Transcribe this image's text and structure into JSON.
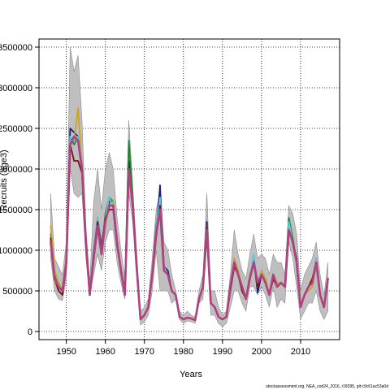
{
  "chart_data": {
    "type": "line",
    "title": "",
    "xlabel": "Years",
    "ylabel": "Recruits (age3)",
    "xlim": [
      1943,
      2020
    ],
    "ylim": [
      -100000,
      3600000
    ],
    "x_ticks": [
      1950,
      1960,
      1970,
      1980,
      1990,
      2000,
      2010
    ],
    "x_tick_labels": [
      "1950",
      "1960",
      "1970",
      "1980",
      "1990",
      "2000",
      "2010"
    ],
    "y_ticks": [
      0,
      500000,
      1000000,
      1500000,
      2000000,
      2500000,
      3000000,
      3500000
    ],
    "y_tick_labels": [
      "0",
      "500000",
      "1000000",
      "1500000",
      "2000000",
      "2500000",
      "3000000",
      "3500000"
    ],
    "grid": true,
    "legend": "none",
    "x": [
      1946,
      1947,
      1948,
      1949,
      1950,
      1951,
      1952,
      1953,
      1954,
      1955,
      1956,
      1957,
      1958,
      1959,
      1960,
      1961,
      1962,
      1963,
      1964,
      1965,
      1966,
      1967,
      1968,
      1969,
      1970,
      1971,
      1972,
      1973,
      1974,
      1975,
      1976,
      1977,
      1978,
      1979,
      1980,
      1981,
      1982,
      1983,
      1984,
      1985,
      1986,
      1987,
      1988,
      1989,
      1990,
      1991,
      1992,
      1993,
      1994,
      1995,
      1996,
      1997,
      1998,
      1999,
      2000,
      2001,
      2002,
      2003,
      2004,
      2005,
      2006,
      2007,
      2008,
      2009,
      2010,
      2011,
      2012,
      2013,
      2014,
      2015,
      2016,
      2017
    ],
    "band": {
      "lower": [
        900000,
        500000,
        400000,
        380000,
        650000,
        2000000,
        1700000,
        1650000,
        1700000,
        900000,
        450000,
        700000,
        950000,
        750000,
        1100000,
        1250000,
        1250000,
        850000,
        600000,
        400000,
        1700000,
        1350000,
        700000,
        80000,
        120000,
        200000,
        500000,
        1000000,
        500000,
        500000,
        500000,
        350000,
        400000,
        150000,
        100000,
        130000,
        120000,
        100000,
        350000,
        400000,
        1100000,
        200000,
        200000,
        100000,
        60000,
        100000,
        300000,
        500000,
        500000,
        350000,
        250000,
        550000,
        550000,
        450000,
        550000,
        450000,
        300000,
        550000,
        300000,
        400000,
        350000,
        1100000,
        900000,
        550000,
        150000,
        250000,
        350000,
        350000,
        500000,
        250000,
        150000,
        250000
      ],
      "upper": [
        1700000,
        900000,
        800000,
        700000,
        1100000,
        3500000,
        3200000,
        3400000,
        2600000,
        1300000,
        600000,
        1600000,
        2000000,
        1500000,
        2000000,
        2200000,
        2000000,
        1400000,
        1000000,
        650000,
        2600000,
        1800000,
        1000000,
        250000,
        300000,
        400000,
        900000,
        1500000,
        1700000,
        1100000,
        1000000,
        700000,
        500000,
        250000,
        200000,
        250000,
        200000,
        180000,
        500000,
        700000,
        1700000,
        500000,
        500000,
        300000,
        200000,
        250000,
        700000,
        1250000,
        950000,
        750000,
        650000,
        950000,
        1200000,
        900000,
        950000,
        900000,
        700000,
        950000,
        850000,
        850000,
        700000,
        1550000,
        1450000,
        1200000,
        500000,
        700000,
        800000,
        900000,
        1100000,
        700000,
        450000,
        850000
      ]
    },
    "series": [
      {
        "color": "#1f1f7a",
        "values": [
          1150000,
          650000,
          550000,
          450000,
          850000,
          2500000,
          2450000,
          2400000,
          2050000,
          1100000,
          500000,
          1000000,
          1400000,
          1050000,
          1400000,
          1600000,
          1600000,
          1100000,
          750000,
          500000,
          2100000,
          1600000,
          800000,
          150000,
          200000,
          300000,
          700000,
          1200000,
          1800000,
          800000,
          750000,
          500000,
          450000,
          180000,
          150000,
          170000,
          160000,
          140000,
          400000,
          550000,
          1350000,
          350000,
          300000,
          180000,
          150000,
          180000,
          500000,
          800000,
          700000,
          500000,
          400000,
          650000,
          900000,
          480000,
          700000,
          600000,
          450000,
          650000,
          550000,
          600000,
          550000,
          1300000,
          1100000,
          900000,
          300000,
          450000,
          550000,
          600000,
          900000,
          450000,
          300000,
          600000
        ]
      },
      {
        "color": "#1a8a2a",
        "values": [
          1200000,
          700000,
          600000,
          500000,
          900000,
          2400000,
          2300000,
          2400000,
          2050000,
          1100000,
          450000,
          900000,
          1350000,
          1000000,
          1450000,
          1650000,
          1600000,
          1100000,
          750000,
          500000,
          2350000,
          1650000,
          800000,
          150000,
          200000,
          300000,
          700000,
          1300000,
          1600000,
          750000,
          700000,
          500000,
          450000,
          180000,
          150000,
          170000,
          160000,
          140000,
          400000,
          550000,
          1300000,
          350000,
          300000,
          180000,
          150000,
          180000,
          550000,
          850000,
          700000,
          500000,
          400000,
          700000,
          850000,
          550000,
          700000,
          600000,
          450000,
          700000,
          550000,
          600000,
          550000,
          1400000,
          1150000,
          850000,
          300000,
          450000,
          550000,
          600000,
          850000,
          450000,
          300000,
          650000
        ]
      },
      {
        "color": "#c9a227",
        "values": [
          1300000,
          750000,
          600000,
          500000,
          900000,
          2350000,
          2350000,
          2750000,
          2000000,
          1100000,
          500000,
          1000000,
          1350000,
          1000000,
          1400000,
          1550000,
          1600000,
          1100000,
          750000,
          500000,
          2000000,
          1550000,
          800000,
          150000,
          200000,
          300000,
          700000,
          1200000,
          1550000,
          750000,
          700000,
          500000,
          450000,
          180000,
          150000,
          170000,
          160000,
          140000,
          400000,
          550000,
          1300000,
          350000,
          300000,
          180000,
          150000,
          180000,
          550000,
          900000,
          750000,
          550000,
          400000,
          700000,
          850000,
          550000,
          750000,
          650000,
          450000,
          700000,
          600000,
          600000,
          550000,
          1300000,
          1100000,
          850000,
          300000,
          450000,
          500000,
          550000,
          850000,
          450000,
          300000,
          600000
        ]
      },
      {
        "color": "#5bc8e0",
        "values": [
          1150000,
          650000,
          550000,
          450000,
          850000,
          2400000,
          2350000,
          2400000,
          2050000,
          1100000,
          500000,
          1000000,
          1400000,
          1000000,
          1400000,
          1650000,
          1550000,
          1100000,
          750000,
          500000,
          2000000,
          1600000,
          800000,
          150000,
          200000,
          300000,
          700000,
          1250000,
          1650000,
          800000,
          700000,
          500000,
          450000,
          180000,
          150000,
          170000,
          160000,
          140000,
          400000,
          550000,
          1300000,
          350000,
          300000,
          180000,
          150000,
          180000,
          500000,
          800000,
          700000,
          500000,
          400000,
          650000,
          950000,
          550000,
          700000,
          600000,
          450000,
          700000,
          550000,
          600000,
          550000,
          1350000,
          1100000,
          850000,
          300000,
          450000,
          550000,
          600000,
          900000,
          450000,
          300000,
          600000
        ]
      },
      {
        "color": "#7a1010",
        "values": [
          1150000,
          650000,
          500000,
          450000,
          800000,
          2300000,
          2100000,
          2100000,
          1950000,
          1100000,
          450000,
          950000,
          1350000,
          1000000,
          1400000,
          1500000,
          1500000,
          1050000,
          750000,
          500000,
          1950000,
          1550000,
          800000,
          150000,
          200000,
          300000,
          700000,
          1150000,
          1550000,
          750000,
          700000,
          500000,
          450000,
          180000,
          150000,
          170000,
          160000,
          140000,
          400000,
          550000,
          1300000,
          350000,
          300000,
          180000,
          150000,
          180000,
          500000,
          800000,
          700000,
          500000,
          400000,
          650000,
          850000,
          550000,
          700000,
          600000,
          450000,
          650000,
          550000,
          600000,
          550000,
          1250000,
          1100000,
          850000,
          300000,
          450000,
          550000,
          650000,
          850000,
          450000,
          300000,
          650000
        ]
      },
      {
        "color": "#b0407e",
        "values": [
          1100000,
          650000,
          550000,
          500000,
          850000,
          2300000,
          2400000,
          2350000,
          2000000,
          1100000,
          450000,
          900000,
          1300000,
          950000,
          1350000,
          1550000,
          1550000,
          1100000,
          750000,
          450000,
          2000000,
          1550000,
          800000,
          150000,
          200000,
          300000,
          700000,
          1200000,
          1500000,
          750000,
          700000,
          500000,
          450000,
          180000,
          150000,
          170000,
          160000,
          140000,
          400000,
          550000,
          1250000,
          350000,
          300000,
          180000,
          150000,
          180000,
          550000,
          850000,
          700000,
          550000,
          400000,
          650000,
          850000,
          600000,
          700000,
          600000,
          450000,
          700000,
          550000,
          600000,
          550000,
          1250000,
          1100000,
          850000,
          300000,
          450000,
          550000,
          600000,
          850000,
          450000,
          300000,
          650000
        ]
      }
    ]
  },
  "footer": "stockassessment.org, NEA_cod24_2016, r18395, git:c9c61ac53a0d"
}
